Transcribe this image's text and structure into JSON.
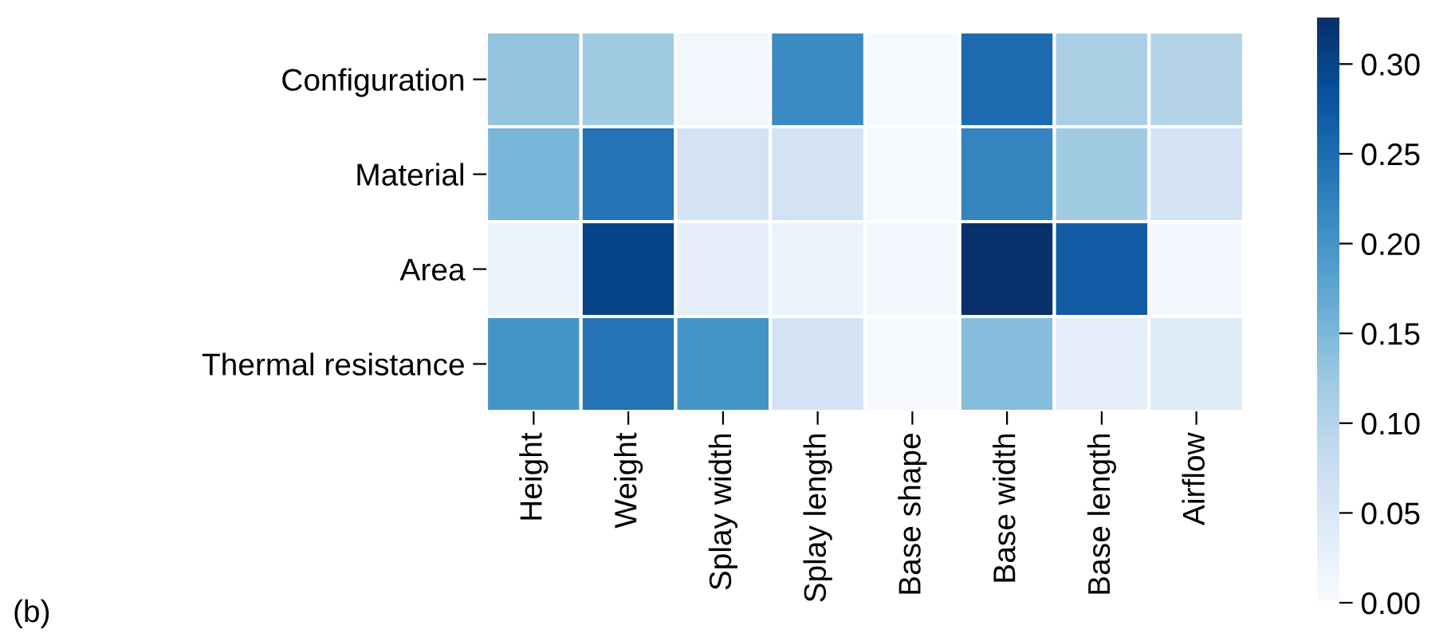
{
  "chart_data": {
    "type": "heatmap",
    "categories": [
      "Height",
      "Weight",
      "Splay width",
      "Splay length",
      "Base shape",
      "Base width",
      "Base length",
      "Airflow"
    ],
    "y_categories": [
      "Configuration",
      "Material",
      "Area",
      "Thermal resistance"
    ],
    "cells": [
      [
        0.13,
        0.12,
        0.01,
        0.21,
        0.005,
        0.25,
        0.11,
        0.1
      ],
      [
        0.15,
        0.24,
        0.06,
        0.06,
        0.005,
        0.22,
        0.12,
        0.06
      ],
      [
        0.02,
        0.3,
        0.03,
        0.02,
        0.01,
        0.325,
        0.27,
        0.01
      ],
      [
        0.2,
        0.24,
        0.2,
        0.06,
        0.005,
        0.14,
        0.03,
        0.04
      ]
    ],
    "clim": [
      0,
      0.325
    ],
    "cticks": [
      {
        "value": 0,
        "label": "0.00"
      },
      {
        "value": 0.05,
        "label": "0.05"
      },
      {
        "value": 0.1,
        "label": "0.10"
      },
      {
        "value": 0.15,
        "label": "0.15"
      },
      {
        "value": 0.2,
        "label": "0.20"
      },
      {
        "value": 0.25,
        "label": "0.25"
      },
      {
        "value": 0.3,
        "label": "0.30"
      }
    ],
    "annotations": [
      "(b)"
    ]
  }
}
